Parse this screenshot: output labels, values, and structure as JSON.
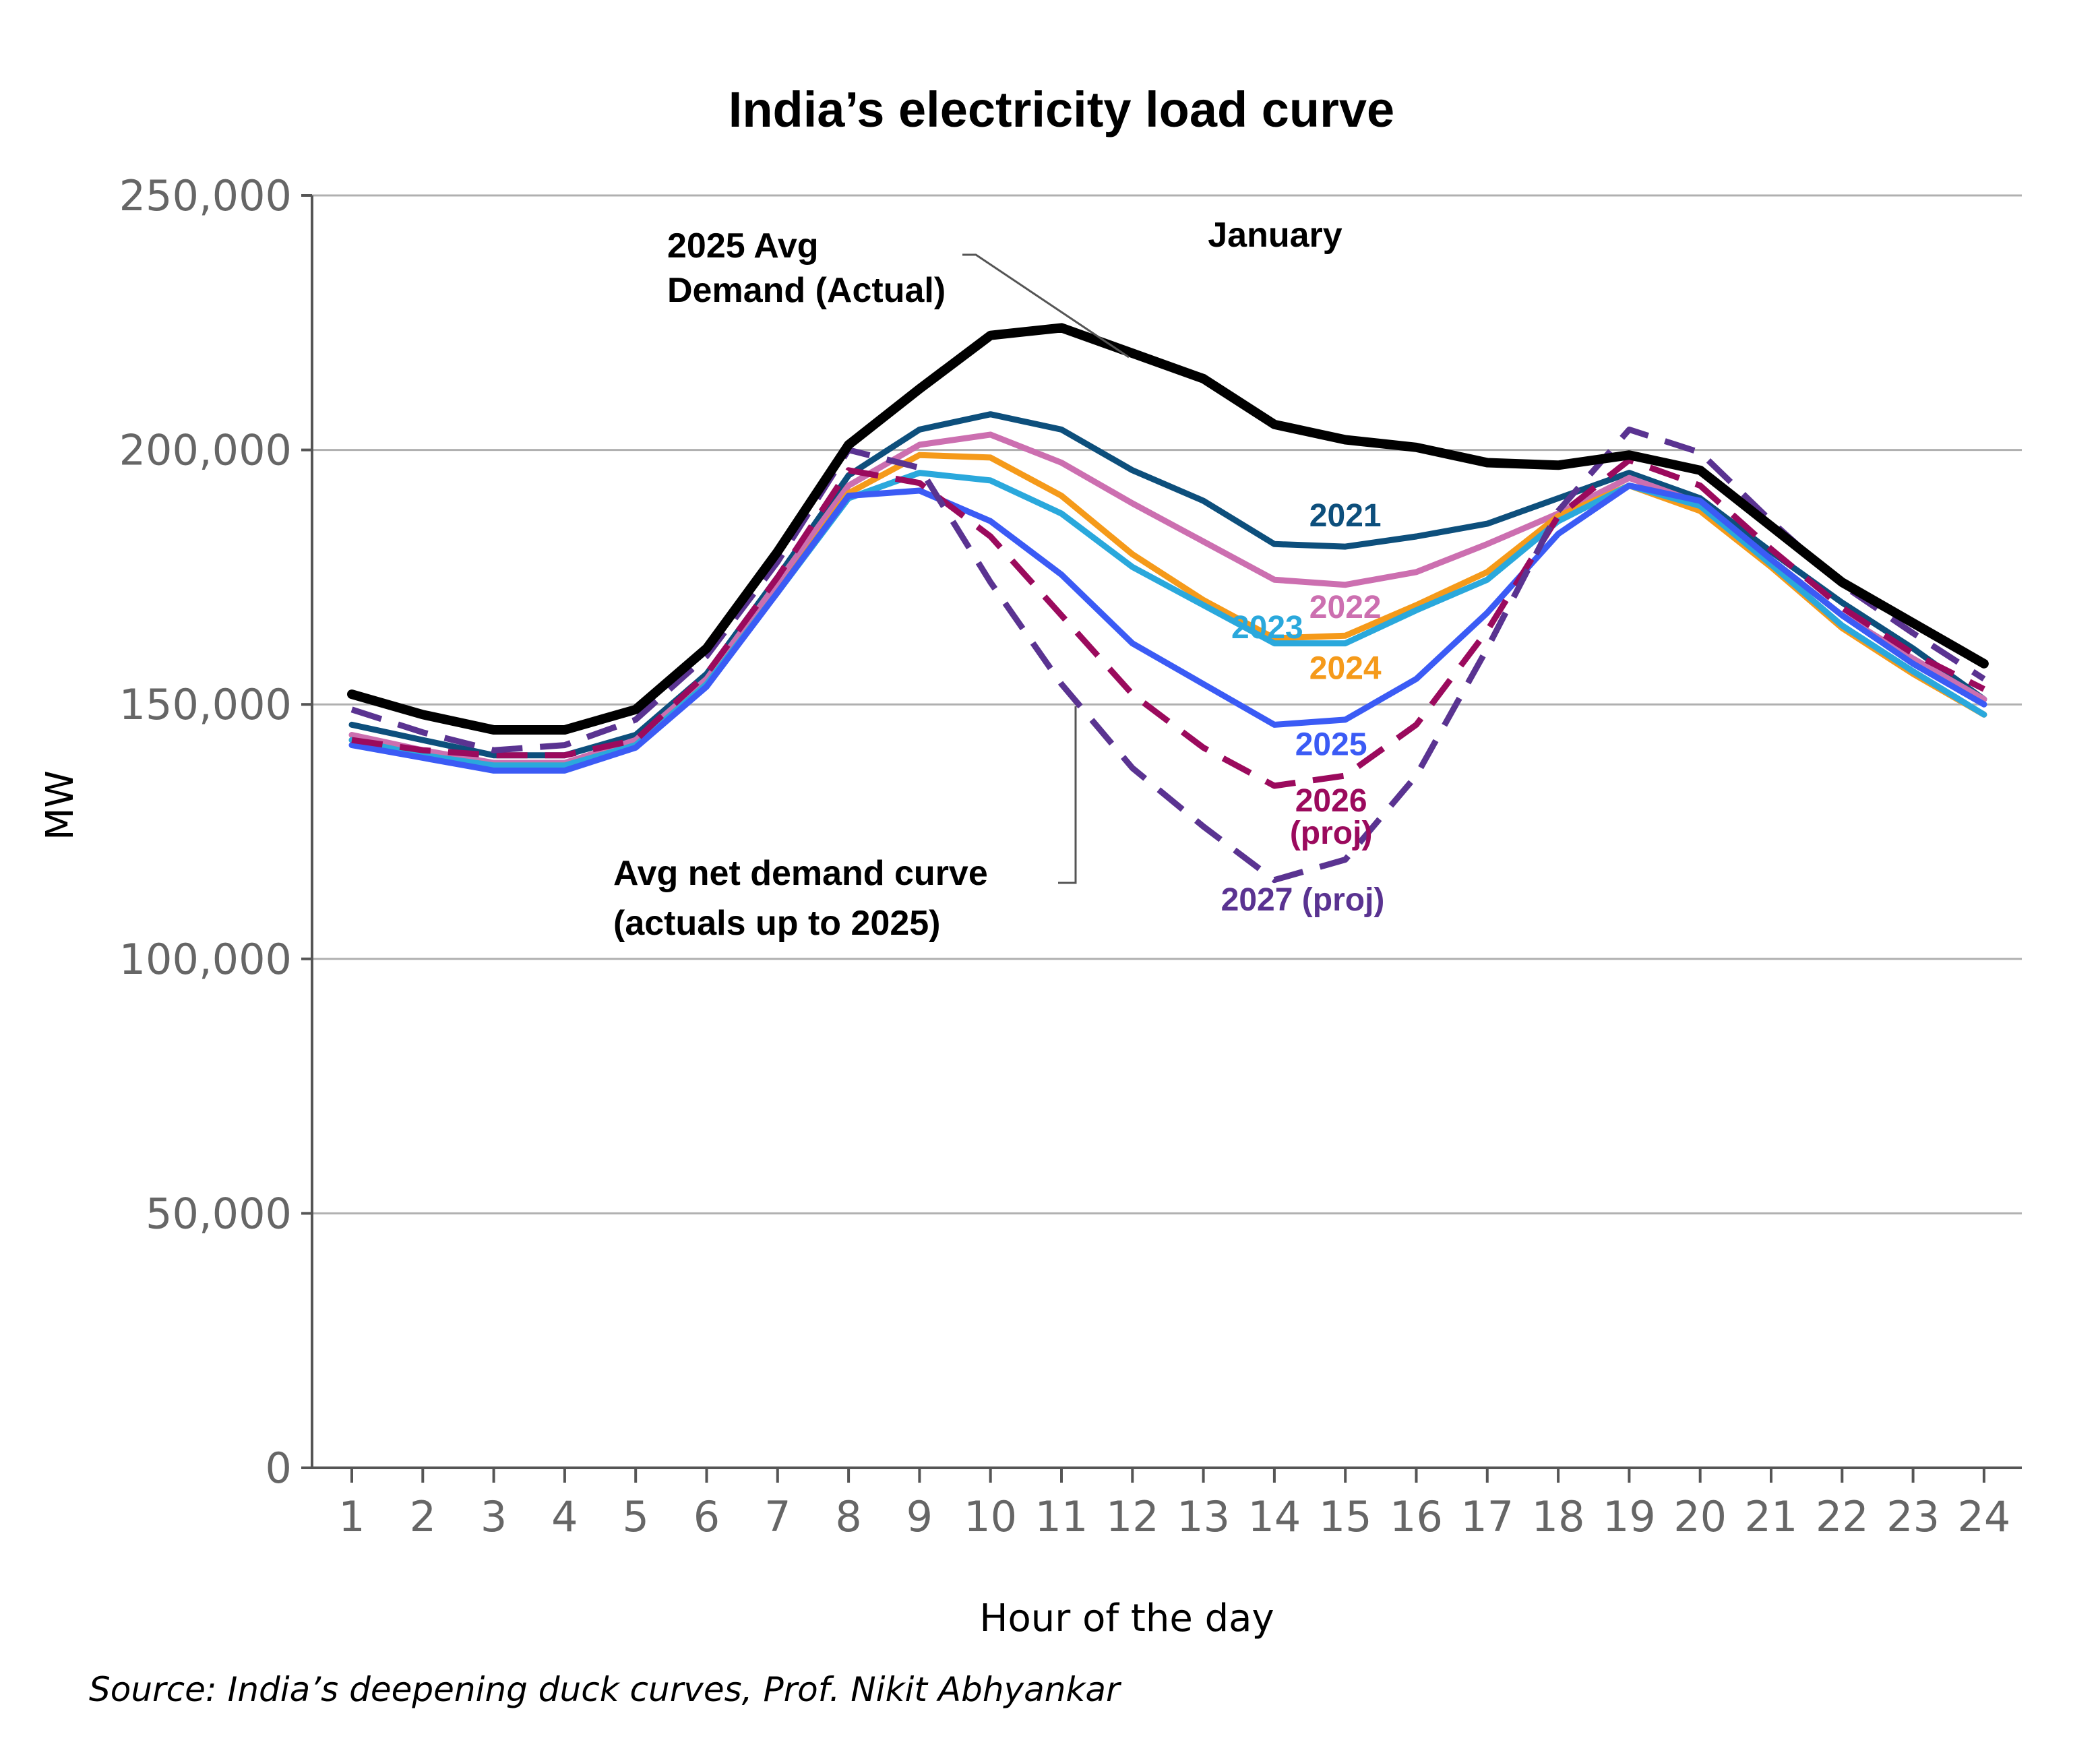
{
  "chart_data": {
    "type": "line",
    "title": "India’s electricity load curve",
    "subtitle": "January",
    "xlabel": "Hour of the day",
    "ylabel": "MW",
    "x": [
      1,
      2,
      3,
      4,
      5,
      6,
      7,
      8,
      9,
      10,
      11,
      12,
      13,
      14,
      15,
      16,
      17,
      18,
      19,
      20,
      21,
      22,
      23,
      24
    ],
    "y_ticks": [
      "0",
      "50,000",
      "100,000",
      "150,000",
      "200,000",
      "250,000"
    ],
    "ylim": [
      0,
      250000
    ],
    "grid": "horizontal",
    "series": [
      {
        "name": "2021",
        "color": "#0d4f7c",
        "dashed": false,
        "label_pos": [
          15,
          185000
        ],
        "values": [
          146000,
          143000,
          140000,
          140000,
          144000,
          156000,
          175000,
          195000,
          204000,
          207000,
          204000,
          196000,
          190000,
          181500,
          181000,
          183000,
          185500,
          190500,
          195500,
          190500,
          180000,
          170000,
          161000,
          151000
        ]
      },
      {
        "name": "2022",
        "color": "#cc6fb0",
        "dashed": false,
        "label_pos": [
          15,
          167000
        ],
        "values": [
          144000,
          141000,
          138500,
          138500,
          143000,
          155000,
          174000,
          193000,
          201000,
          203000,
          197500,
          189500,
          182000,
          174500,
          173500,
          176000,
          181500,
          187500,
          194500,
          189500,
          178500,
          167500,
          159000,
          151000
        ]
      },
      {
        "name": "2024",
        "color": "#f59a1a",
        "dashed": false,
        "label_pos": [
          15,
          155000
        ],
        "values": [
          143000,
          140000,
          138000,
          138000,
          142000,
          154000,
          172000,
          191500,
          199000,
          198500,
          191000,
          179500,
          170500,
          163000,
          163500,
          169500,
          176000,
          187000,
          193000,
          188000,
          177000,
          165000,
          156000,
          148000
        ]
      },
      {
        "name": "2023",
        "color": "#2aa8dc",
        "dashed": false,
        "label_pos": [
          13.9,
          163000
        ],
        "values": [
          143000,
          140000,
          138000,
          138000,
          142000,
          154000,
          172000,
          190500,
          195500,
          194000,
          187500,
          177000,
          169500,
          162000,
          162000,
          168500,
          174500,
          186000,
          193000,
          189000,
          177500,
          165500,
          156500,
          148000
        ]
      },
      {
        "name": "2025",
        "color": "#3b5bf5",
        "dashed": false,
        "label_pos": [
          14.8,
          140000
        ],
        "values": [
          142000,
          139500,
          137000,
          137000,
          141500,
          153500,
          172000,
          191000,
          192000,
          186000,
          175500,
          162000,
          154000,
          146000,
          147000,
          155000,
          168000,
          183500,
          193000,
          190000,
          178500,
          167500,
          158000,
          150000
        ]
      },
      {
        "name": "2026",
        "name2": "(proj)",
        "color": "#9b0a5d",
        "dashed": true,
        "label_pos": [
          14.8,
          129000
        ],
        "values": [
          143000,
          141000,
          140000,
          140000,
          143000,
          156000,
          175000,
          196000,
          193500,
          183000,
          167500,
          152000,
          141500,
          134000,
          136000,
          146000,
          164500,
          187000,
          198000,
          193000,
          180500,
          169000,
          160000,
          153000
        ]
      },
      {
        "name": "2027 (proj)",
        "color": "#5a3391",
        "dashed": true,
        "label_pos": [
          14.4,
          109500
        ],
        "values": [
          149000,
          144500,
          141000,
          142000,
          147000,
          159500,
          178000,
          200000,
          196500,
          174000,
          154000,
          137500,
          126000,
          115500,
          119500,
          136000,
          161000,
          188000,
          204000,
          199500,
          186000,
          173500,
          164000,
          155000
        ]
      },
      {
        "name": "2025 Avg Demand (Actual)",
        "color": "#000000",
        "dashed": false,
        "width": 14,
        "values": [
          152000,
          148000,
          145000,
          145000,
          149000,
          161000,
          180000,
          201000,
          212000,
          222500,
          224000,
          219000,
          214000,
          205000,
          202000,
          200500,
          197500,
          197000,
          199000,
          196000,
          185000,
          174000,
          166000,
          158000
        ]
      }
    ],
    "annotations": {
      "avg_demand": [
        "2025 Avg",
        "Demand (Actual)"
      ],
      "net_demand": [
        "Avg net demand curve",
        "(actuals up to 2025)"
      ]
    },
    "source": "Source: India’s deepening duck curves, Prof. Nikit Abhyankar"
  }
}
